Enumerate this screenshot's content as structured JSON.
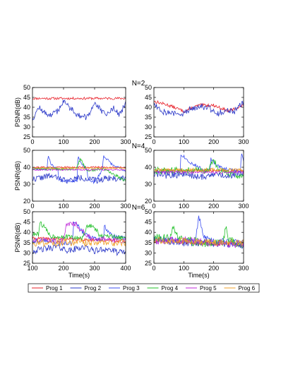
{
  "colors": {
    "Prog 1": "#e8212a",
    "Prog 2": "#2a37c8",
    "Prog 3": "#3b4ef0",
    "Prog 4": "#22c02a",
    "Prog 5": "#c02ad8",
    "Prog 6": "#f0a028"
  },
  "legend": {
    "placement": "bottom",
    "entries": [
      "Prog 1",
      "Prog 2",
      "Prog 3",
      "Prog 4",
      "Prog 5",
      "Prog 6"
    ]
  },
  "chart_data": [
    {
      "id": "n2-left",
      "type": "line",
      "group_label": "N=2",
      "title": "",
      "xlabel": "",
      "ylabel": "PSNR(dB)",
      "xlim": [
        0,
        300
      ],
      "ylim": [
        25,
        50
      ],
      "xticks": [
        0,
        100,
        200,
        300
      ],
      "yticks": [
        25,
        30,
        35,
        40,
        45,
        50
      ],
      "series": [
        {
          "name": "Prog 1",
          "x": [
            0,
            300
          ],
          "y": [
            44.5,
            44.5
          ],
          "noise": 0.6,
          "seed": 11
        },
        {
          "name": "Prog 2",
          "x": [
            0,
            20,
            40,
            60,
            80,
            100,
            120,
            140,
            160,
            180,
            200,
            220,
            240,
            260,
            280,
            300
          ],
          "y": [
            34,
            40,
            37,
            36,
            38,
            43,
            40,
            37,
            35,
            35,
            43,
            38,
            36,
            40,
            36,
            42
          ],
          "noise": 1.5,
          "seed": 12
        }
      ]
    },
    {
      "id": "n2-right",
      "type": "line",
      "title": "",
      "xlabel": "",
      "ylabel": "",
      "xlim": [
        0,
        300
      ],
      "ylim": [
        25,
        50
      ],
      "xticks": [
        0,
        100,
        200,
        300
      ],
      "yticks": [
        25,
        30,
        35,
        40,
        45,
        50
      ],
      "series": [
        {
          "name": "Prog 1",
          "x": [
            0,
            50,
            100,
            150,
            200,
            250,
            300
          ],
          "y": [
            43,
            41,
            38,
            41,
            41,
            38,
            41
          ],
          "noise": 0.8,
          "seed": 13
        },
        {
          "name": "Prog 2",
          "x": [
            0,
            30,
            60,
            90,
            120,
            150,
            180,
            210,
            240,
            270,
            300
          ],
          "y": [
            42,
            38,
            37,
            36,
            39,
            41,
            40,
            37,
            38,
            38,
            43
          ],
          "noise": 1.8,
          "seed": 14
        }
      ]
    },
    {
      "id": "n4-left",
      "type": "line",
      "group_label": "N=4",
      "title": "",
      "xlabel": "",
      "ylabel": "PSNR(dB)",
      "xlim": [
        0,
        300
      ],
      "ylim": [
        20,
        50
      ],
      "xticks": [
        0,
        100,
        200,
        300
      ],
      "yticks": [
        20,
        30,
        40,
        50
      ],
      "series": [
        {
          "name": "Prog 1",
          "x": [
            0,
            300
          ],
          "y": [
            40,
            40
          ],
          "noise": 0.5,
          "seed": 21
        },
        {
          "name": "Prog 2",
          "x": [
            0,
            30,
            60,
            90,
            120,
            150,
            180,
            210,
            240,
            270,
            300
          ],
          "y": [
            33,
            34,
            35,
            33,
            32,
            34,
            33,
            32,
            34,
            33,
            34
          ],
          "noise": 1.8,
          "seed": 22
        },
        {
          "name": "Prog 3",
          "x": [
            0,
            48,
            50,
            60,
            70,
            82,
            84,
            100,
            120,
            144,
            146,
            160,
            176,
            178,
            200,
            226,
            228,
            260,
            285,
            300
          ],
          "y": [
            39,
            39,
            47,
            42,
            40,
            39,
            33,
            32,
            32,
            32,
            47,
            41,
            39,
            33,
            31,
            39,
            47,
            41,
            39,
            37
          ],
          "noise": 0.8,
          "seed": 23
        },
        {
          "name": "Prog 4",
          "x": [
            0,
            60,
            110,
            140,
            155,
            175,
            230,
            300
          ],
          "y": [
            39,
            39,
            39,
            39,
            45,
            38,
            39,
            32
          ],
          "noise": 0.8,
          "seed": 24
        },
        {
          "name": "Prog 5",
          "x": [
            0,
            300
          ],
          "y": [
            38.5,
            38.5
          ],
          "noise": 0.4,
          "seed": 25
        },
        {
          "name": "Prog 6",
          "x": [
            0,
            300
          ],
          "y": [
            39.5,
            39.5
          ],
          "noise": 0.5,
          "seed": 26
        }
      ]
    },
    {
      "id": "n4-right",
      "type": "line",
      "title": "",
      "xlabel": "",
      "ylabel": "",
      "xlim": [
        0,
        300
      ],
      "ylim": [
        20,
        50
      ],
      "xticks": [
        0,
        100,
        200,
        300
      ],
      "yticks": [
        20,
        30,
        40,
        50
      ],
      "series": [
        {
          "name": "Prog 1",
          "x": [
            0,
            300
          ],
          "y": [
            38,
            38
          ],
          "noise": 0.8,
          "seed": 31
        },
        {
          "name": "Prog 2",
          "x": [
            0,
            50,
            100,
            150,
            200,
            250,
            300
          ],
          "y": [
            36,
            35,
            36,
            34,
            36,
            35,
            37
          ],
          "noise": 2.0,
          "seed": 32
        },
        {
          "name": "Prog 3",
          "x": [
            0,
            88,
            90,
            120,
            150,
            170,
            188,
            190,
            210,
            240,
            270,
            290,
            292,
            300
          ],
          "y": [
            37,
            37,
            48,
            43,
            40,
            38,
            38,
            45,
            41,
            39,
            38,
            38,
            48,
            44
          ],
          "noise": 1.0,
          "seed": 33
        },
        {
          "name": "Prog 4",
          "x": [
            0,
            100,
            180,
            200,
            220,
            300
          ],
          "y": [
            38,
            38,
            38,
            44,
            38,
            34
          ],
          "noise": 2.0,
          "seed": 34
        },
        {
          "name": "Prog 5",
          "x": [
            0,
            300
          ],
          "y": [
            37,
            37
          ],
          "noise": 0.8,
          "seed": 35
        },
        {
          "name": "Prog 6",
          "x": [
            0,
            300
          ],
          "y": [
            38.5,
            38.5
          ],
          "noise": 1.0,
          "seed": 36
        }
      ]
    },
    {
      "id": "n6-left",
      "type": "line",
      "group_label": "N=6",
      "title": "",
      "xlabel": "Time(s)",
      "ylabel": "PSNR(dB)",
      "xlim": [
        100,
        400
      ],
      "ylim": [
        25,
        50
      ],
      "xticks": [
        100,
        200,
        300,
        400
      ],
      "yticks": [
        25,
        30,
        35,
        40,
        45,
        50
      ],
      "series": [
        {
          "name": "Prog 1",
          "x": [
            100,
            400
          ],
          "y": [
            37,
            36
          ],
          "noise": 0.8,
          "seed": 41
        },
        {
          "name": "Prog 2",
          "x": [
            100,
            140,
            180,
            220,
            260,
            300,
            340,
            380,
            400
          ],
          "y": [
            31,
            32,
            33,
            31,
            33,
            31,
            32,
            30,
            31
          ],
          "noise": 1.6,
          "seed": 42
        },
        {
          "name": "Prog 3",
          "x": [
            100,
            150,
            180,
            230,
            232,
            260,
            290,
            300,
            330,
            331,
            360,
            400
          ],
          "y": [
            36,
            36,
            35,
            35,
            46,
            40,
            37,
            37,
            37,
            43,
            38,
            37
          ],
          "noise": 1.2,
          "seed": 43
        },
        {
          "name": "Prog 4",
          "x": [
            100,
            120,
            125,
            140,
            160,
            200,
            260,
            280,
            300,
            320,
            340,
            400
          ],
          "y": [
            39,
            39,
            45,
            42,
            38,
            38,
            37,
            44,
            42,
            38,
            38,
            37
          ],
          "noise": 1.2,
          "seed": 44
        },
        {
          "name": "Prog 5",
          "x": [
            100,
            150,
            200,
            210,
            240,
            280,
            300,
            320,
            360,
            400
          ],
          "y": [
            36,
            36,
            36,
            44,
            44,
            38,
            36,
            37,
            36,
            36
          ],
          "noise": 1.2,
          "seed": 45
        },
        {
          "name": "Prog 6",
          "x": [
            100,
            400
          ],
          "y": [
            35,
            35
          ],
          "noise": 1.8,
          "seed": 46
        }
      ]
    },
    {
      "id": "n6-right",
      "type": "line",
      "title": "",
      "xlabel": "Time(s)",
      "ylabel": "",
      "xlim": [
        0,
        300
      ],
      "ylim": [
        25,
        50
      ],
      "xticks": [
        0,
        100,
        200,
        300
      ],
      "yticks": [
        25,
        30,
        35,
        40,
        45,
        50
      ],
      "series": [
        {
          "name": "Prog 1",
          "x": [
            0,
            300
          ],
          "y": [
            36,
            34
          ],
          "noise": 1.0,
          "seed": 51
        },
        {
          "name": "Prog 2",
          "x": [
            0,
            100,
            200,
            300
          ],
          "y": [
            36,
            35,
            35,
            34
          ],
          "noise": 1.8,
          "seed": 52
        },
        {
          "name": "Prog 3",
          "x": [
            0,
            140,
            150,
            165,
            200,
            300
          ],
          "y": [
            37,
            36,
            48,
            38,
            36,
            35
          ],
          "noise": 1.5,
          "seed": 53
        },
        {
          "name": "Prog 4",
          "x": [
            0,
            50,
            65,
            80,
            150,
            230,
            240,
            250,
            300
          ],
          "y": [
            37,
            37,
            44,
            37,
            35,
            35,
            42,
            36,
            34
          ],
          "noise": 2.2,
          "seed": 54
        },
        {
          "name": "Prog 5",
          "x": [
            0,
            100,
            200,
            300
          ],
          "y": [
            36,
            36,
            35,
            34
          ],
          "noise": 1.8,
          "seed": 55
        },
        {
          "name": "Prog 6",
          "x": [
            0,
            300
          ],
          "y": [
            36,
            35
          ],
          "noise": 1.6,
          "seed": 56
        }
      ]
    }
  ]
}
